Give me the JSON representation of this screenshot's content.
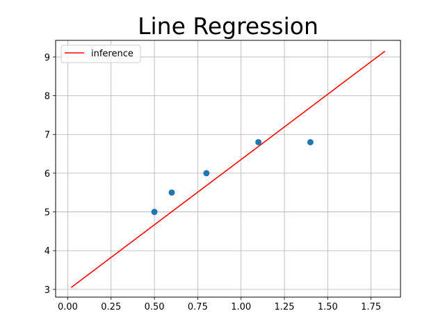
{
  "chart_data": {
    "type": "scatter",
    "title": "Line Regression",
    "xlabel": "",
    "ylabel": "",
    "xlim": [
      -0.07,
      1.92
    ],
    "ylim": [
      2.8,
      9.43
    ],
    "grid": true,
    "legend_position": "top-left",
    "xticks": [
      0.0,
      0.25,
      0.5,
      0.75,
      1.0,
      1.25,
      1.5,
      1.75
    ],
    "xtick_labels": [
      "0.00",
      "0.25",
      "0.50",
      "0.75",
      "1.00",
      "1.25",
      "1.50",
      "1.75"
    ],
    "yticks": [
      3,
      4,
      5,
      6,
      7,
      8,
      9
    ],
    "ytick_labels": [
      "3",
      "4",
      "5",
      "6",
      "7",
      "8",
      "9"
    ],
    "points": {
      "color": "#1f77b4",
      "x": [
        0.5,
        0.6,
        0.8,
        1.1,
        1.4
      ],
      "y": [
        5.0,
        5.5,
        6.0,
        6.8,
        6.8
      ]
    },
    "line": {
      "name": "inference",
      "color": "#ff0000",
      "x": [
        0.02,
        1.83
      ],
      "y": [
        3.05,
        9.15
      ]
    }
  }
}
